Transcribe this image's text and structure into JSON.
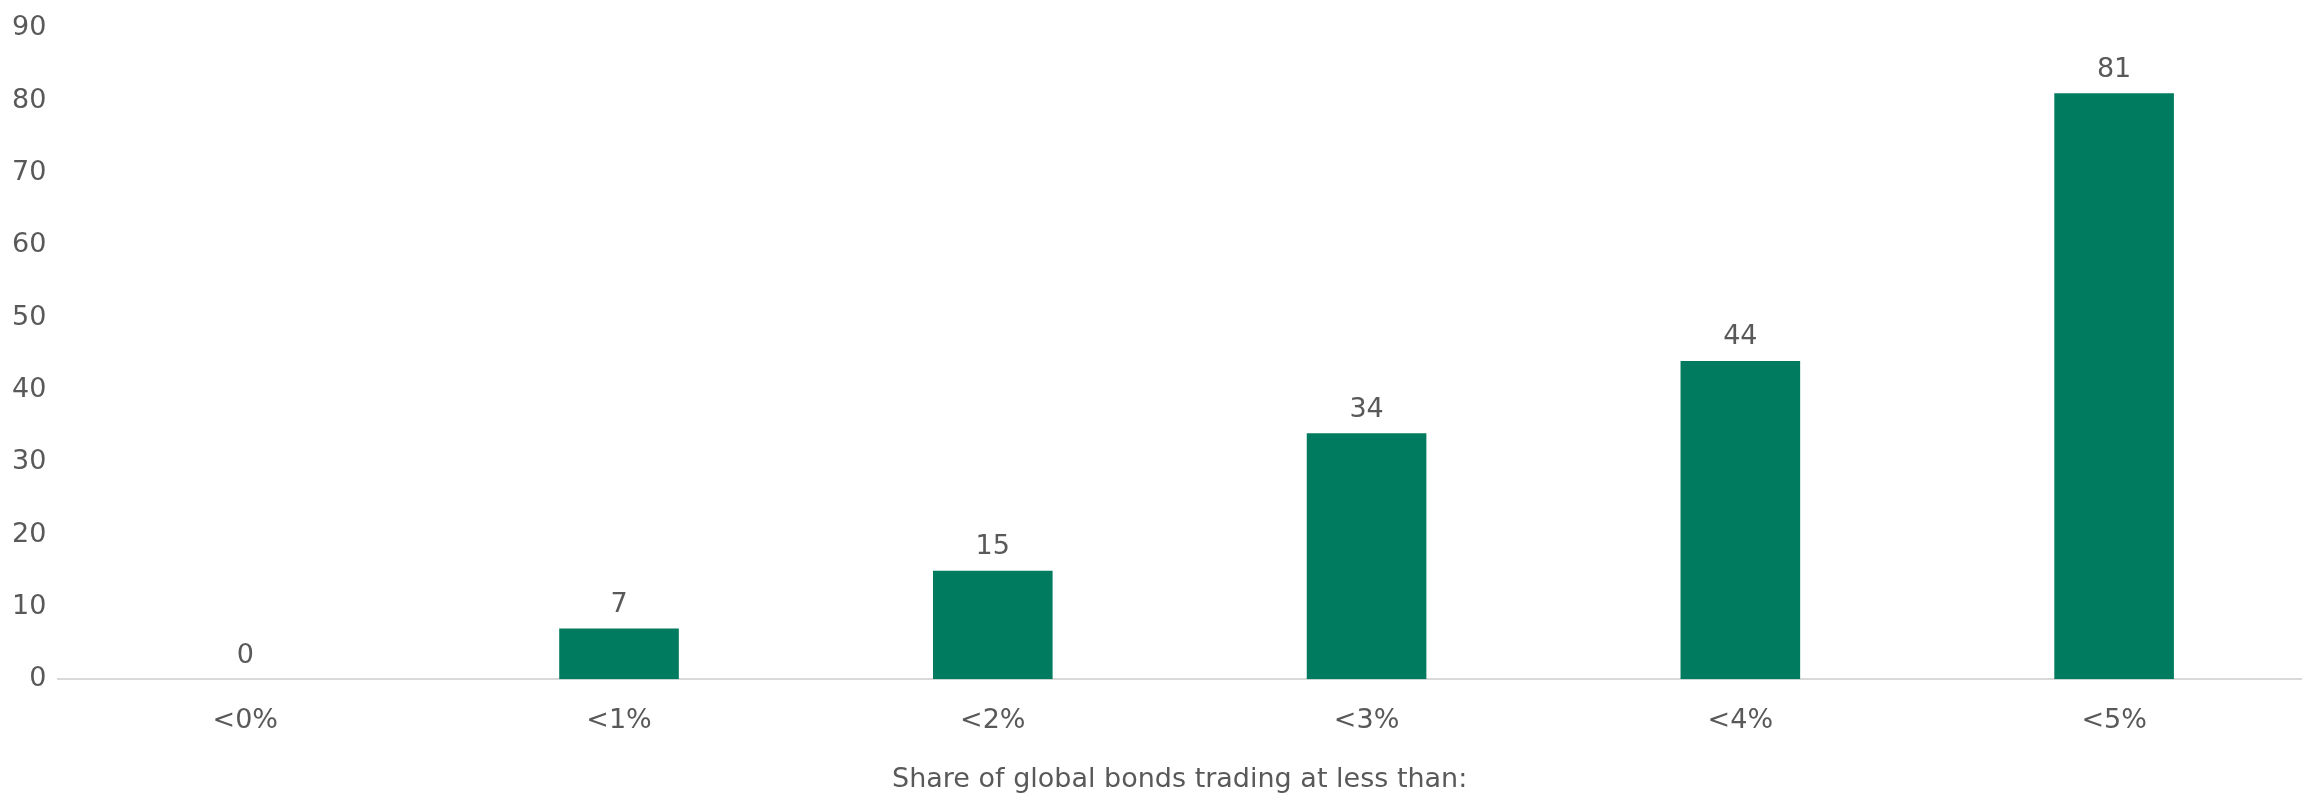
{
  "chart_data": {
    "type": "bar",
    "xlabel": "Share of global bonds trading at less than:",
    "categories": [
      "<0%",
      "<1%",
      "<2%",
      "<3%",
      "<4%",
      "<5%"
    ],
    "values": [
      0,
      7,
      15,
      34,
      44,
      81
    ],
    "color": "#007b5f",
    "ylim": [
      0,
      90
    ],
    "yticks": [
      0,
      10,
      20,
      30,
      40,
      50,
      60,
      70,
      80,
      90
    ],
    "grid": false,
    "legend": false,
    "data_labels": true
  }
}
